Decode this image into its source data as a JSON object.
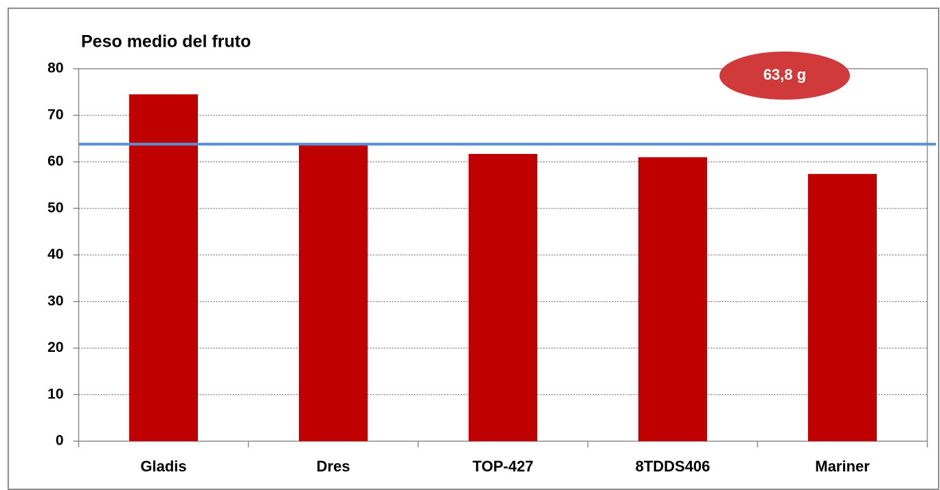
{
  "chart_data": {
    "type": "bar",
    "title": "Peso medio del fruto",
    "categories": [
      "Gladis",
      "Dres",
      "TOP-427",
      "8TDDS406",
      "Mariner"
    ],
    "values": [
      74.5,
      63.9,
      61.7,
      61.0,
      57.4
    ],
    "color": "#c00000",
    "ylim": [
      0,
      80
    ],
    "yticks": [
      0,
      10,
      20,
      30,
      40,
      50,
      60,
      70,
      80
    ],
    "grid": true,
    "reference_line": {
      "value": 63.8,
      "label": "63,8 g",
      "color": "#5b8fd4"
    }
  }
}
